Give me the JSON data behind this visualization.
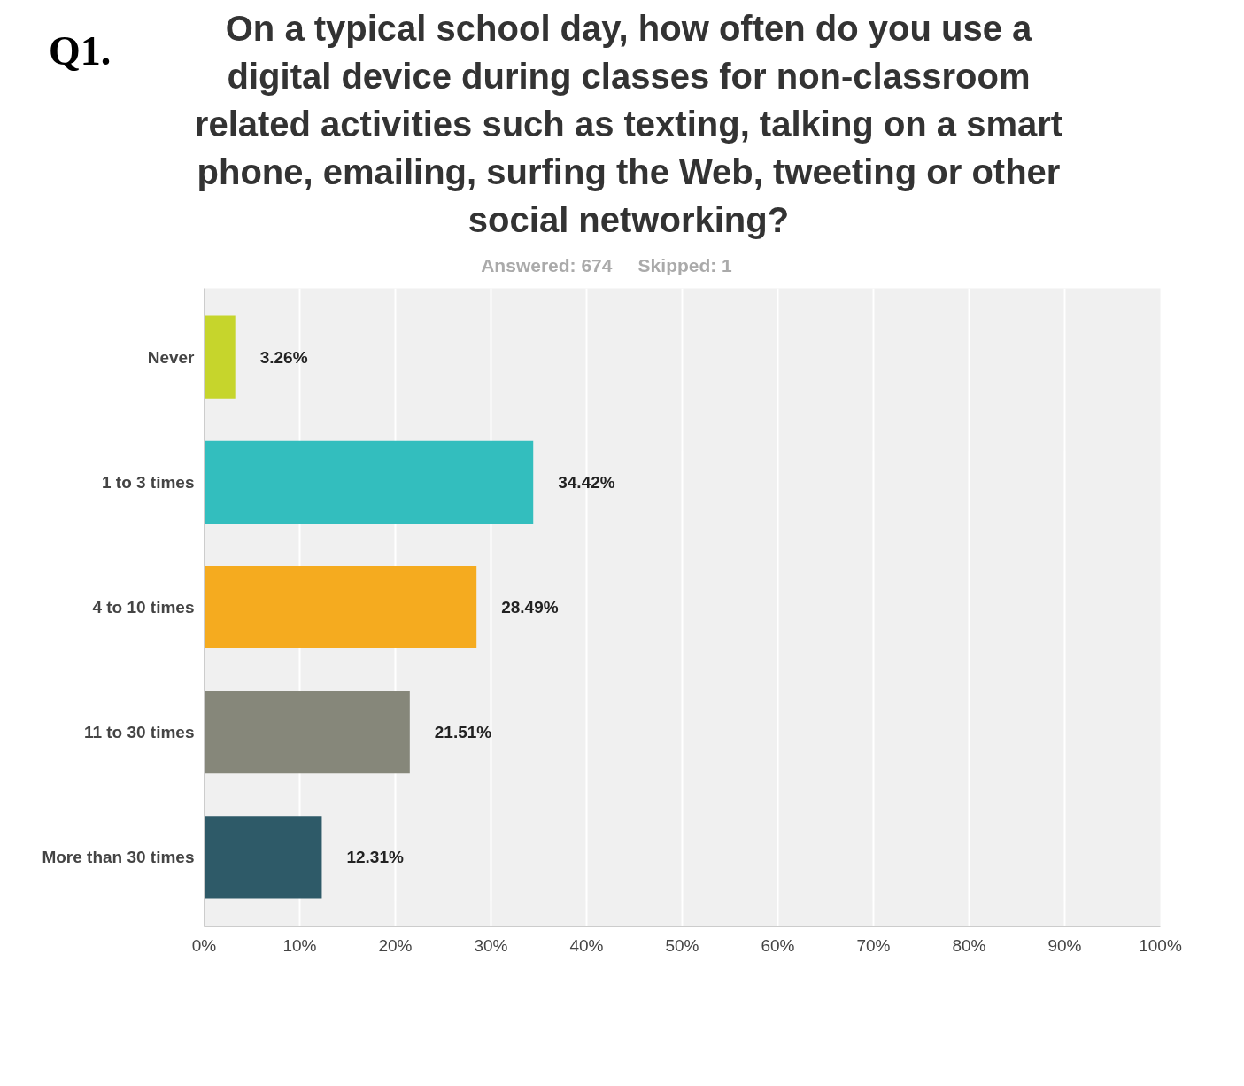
{
  "chart_data": {
    "type": "bar",
    "orientation": "horizontal",
    "title": "Q1.",
    "subtitle": "On a typical school day, how often do you use a digital device during classes for non-classroom related activities such as texting, talking on a smart phone, emailing, surfing the Web, tweeting or other social networking?",
    "annotations": [
      "Answered: 674",
      "Skipped: 1"
    ],
    "categories": [
      "Never",
      "1 to 3 times",
      "4 to 10 times",
      "11 to 30 times",
      "More than 30 times"
    ],
    "values": [
      3.26,
      34.42,
      28.49,
      21.51,
      12.31
    ],
    "colors": [
      "#c6d52c",
      "#33bebe",
      "#f5ab1f",
      "#86877a",
      "#2e5a68"
    ],
    "value_labels": [
      "3.26%",
      "34.42%",
      "28.49%",
      "21.51%",
      "12.31%"
    ],
    "xlim": [
      0,
      100
    ],
    "xticks": [
      {
        "value": 0,
        "label": "0%"
      },
      {
        "value": 10,
        "label": "10%"
      },
      {
        "value": 20,
        "label": "20%"
      },
      {
        "value": 30,
        "label": "30%"
      },
      {
        "value": 40,
        "label": "40%"
      },
      {
        "value": 50,
        "label": "50%"
      },
      {
        "value": 60,
        "label": "60%"
      },
      {
        "value": 70,
        "label": "70%"
      },
      {
        "value": 80,
        "label": "80%"
      },
      {
        "value": 90,
        "label": "90%"
      },
      {
        "value": 100,
        "label": "100%"
      }
    ],
    "grid": "x"
  }
}
